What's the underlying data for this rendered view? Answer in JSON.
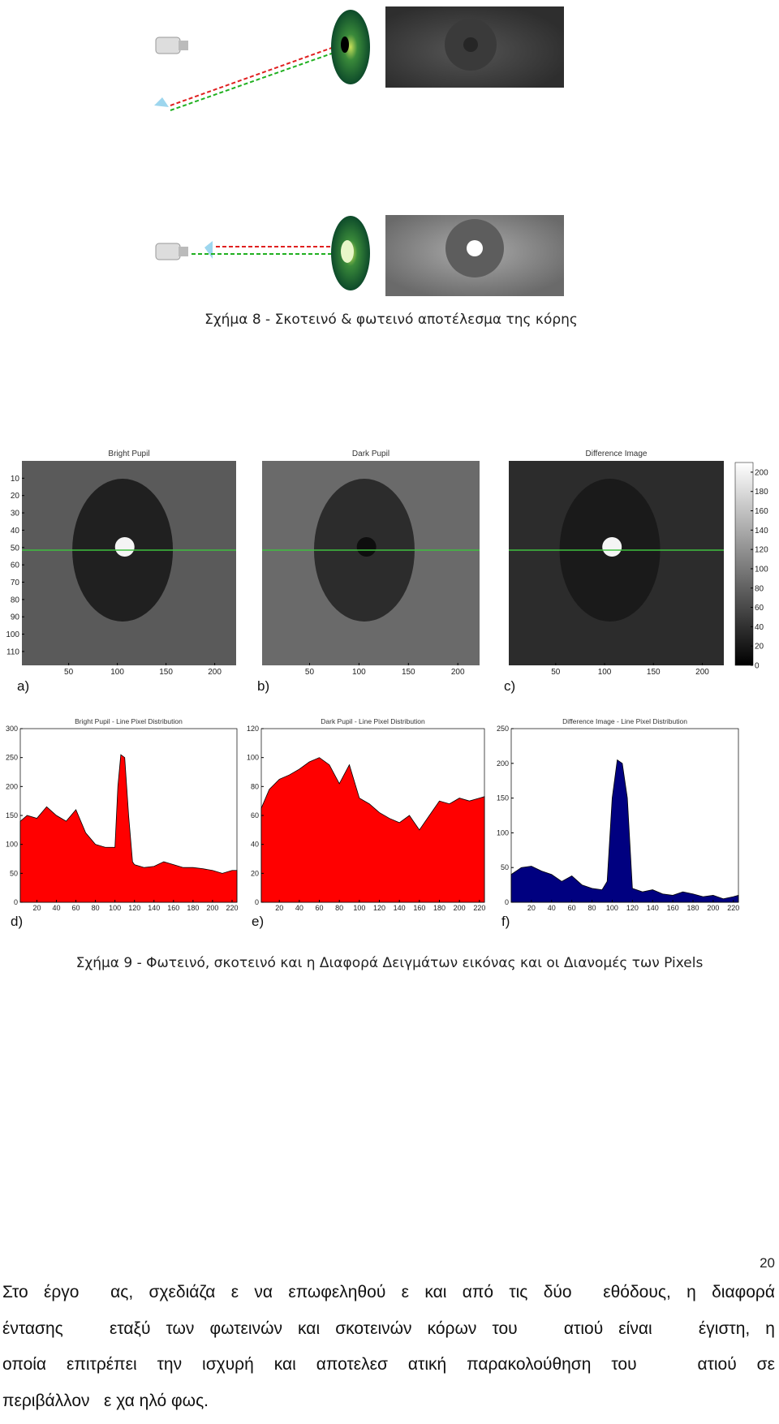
{
  "figure8": {
    "caption": "Σχήμα 8 - Σκοτεινό & φωτεινό αποτέλεσμα της κόρης"
  },
  "figure9": {
    "images": [
      {
        "title": "Bright Pupil",
        "label": "a)",
        "xlim": [
          2,
          222
        ],
        "ylim": [
          0,
          118
        ],
        "xticks": [
          50,
          100,
          150,
          200
        ],
        "yticks": [
          10,
          20,
          30,
          40,
          50,
          60,
          70,
          80,
          90,
          100,
          110
        ]
      },
      {
        "title": "Dark Pupil",
        "label": "b)",
        "xlim": [
          2,
          222
        ],
        "xticks": [
          50,
          100,
          150,
          200
        ]
      },
      {
        "title": "Difference Image",
        "label": "c)",
        "xlim": [
          2,
          222
        ],
        "xticks": [
          50,
          100,
          150,
          200
        ],
        "colorbar_lim": [
          0,
          210
        ],
        "colorbar_ticks": [
          0,
          20,
          40,
          60,
          80,
          100,
          120,
          140,
          160,
          180,
          200
        ]
      }
    ],
    "plots": [
      {
        "title": "Bright Pupil - Line Pixel Distribution",
        "label": "d)",
        "color": "#ff0000",
        "x": [
          0,
          10,
          20,
          30,
          40,
          50,
          60,
          70,
          80,
          90,
          100,
          103,
          106,
          110,
          114,
          118,
          120,
          130,
          140,
          150,
          160,
          170,
          180,
          190,
          200,
          210,
          220,
          225
        ],
        "values": [
          140,
          150,
          145,
          165,
          150,
          140,
          160,
          120,
          100,
          95,
          95,
          200,
          255,
          250,
          150,
          70,
          65,
          60,
          62,
          70,
          65,
          60,
          60,
          58,
          55,
          50,
          55,
          55
        ],
        "xlim": [
          3,
          225
        ],
        "ylim": [
          0,
          300
        ],
        "xticks": [
          20,
          40,
          60,
          80,
          100,
          120,
          140,
          160,
          180,
          200,
          220
        ],
        "yticks": [
          0,
          50,
          100,
          150,
          200,
          250,
          300
        ]
      },
      {
        "title": "Dark Pupil - Line Pixel Distribution",
        "label": "e)",
        "color": "#ff0000",
        "x": [
          0,
          10,
          20,
          30,
          40,
          50,
          60,
          70,
          80,
          90,
          100,
          110,
          120,
          130,
          140,
          150,
          160,
          170,
          180,
          190,
          200,
          210,
          220,
          230
        ],
        "values": [
          65,
          78,
          85,
          88,
          92,
          97,
          100,
          95,
          82,
          95,
          72,
          68,
          62,
          58,
          55,
          60,
          50,
          60,
          70,
          68,
          72,
          70,
          72,
          73
        ],
        "xlim": [
          2,
          225
        ],
        "ylim": [
          0,
          120
        ],
        "xticks": [
          20,
          40,
          60,
          80,
          100,
          120,
          140,
          160,
          180,
          200,
          220
        ],
        "yticks": [
          0,
          20,
          40,
          60,
          80,
          100,
          120
        ]
      },
      {
        "title": "Difference Image - Line Pixel Distribution",
        "label": "f)",
        "color": "#000080",
        "x": [
          0,
          10,
          20,
          30,
          40,
          50,
          60,
          70,
          80,
          90,
          95,
          100,
          105,
          110,
          115,
          120,
          130,
          140,
          150,
          160,
          170,
          180,
          190,
          200,
          210,
          220,
          225
        ],
        "values": [
          40,
          50,
          52,
          45,
          40,
          30,
          38,
          25,
          20,
          18,
          30,
          150,
          205,
          200,
          150,
          20,
          15,
          18,
          12,
          10,
          15,
          12,
          8,
          10,
          5,
          8,
          10
        ],
        "xlim": [
          0,
          225
        ],
        "ylim": [
          0,
          250
        ],
        "xticks": [
          20,
          40,
          60,
          80,
          100,
          120,
          140,
          160,
          180,
          200,
          220
        ],
        "yticks": [
          0,
          50,
          100,
          150,
          200,
          250
        ]
      }
    ],
    "caption": "Σχήμα 9 - Φωτεινό, σκοτεινό και η Διαφορά Δειγμάτων εικόνας και οι Διανομές των Pixels"
  },
  "body": {
    "lines": [
      "Στο έργο  ας, σχεδιάζα ε να επωφεληθού ε και από τις δύο  εθόδους, η διαφορά",
      "έντασης   εταξύ των φωτεινών και σκοτεινών κόρων του   ατιού είναι   έγιστη, η",
      "οποία επιτρέπει την ισχυρή και αποτελεσ ατική παρακολούθηση του   ατιού σε",
      "περιβάλλον   ε χα ηλό φως."
    ]
  },
  "page_number": "20"
}
